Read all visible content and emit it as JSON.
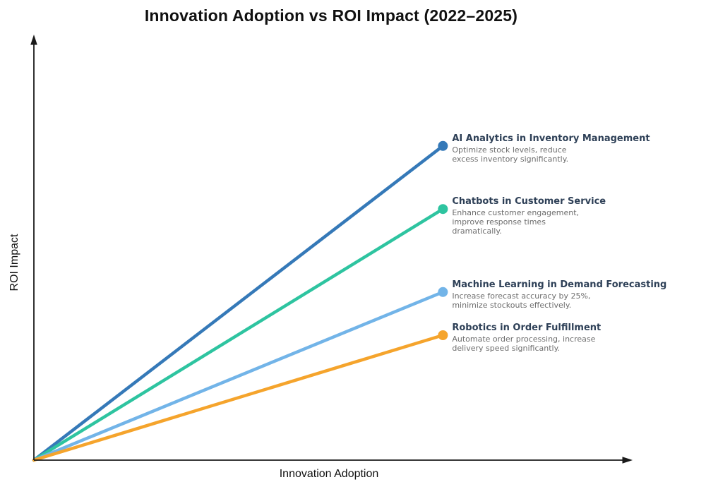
{
  "chart_data": {
    "type": "line",
    "title": "Innovation Adoption vs ROI Impact (2022–2025)",
    "xlabel": "Innovation Adoption",
    "ylabel": "ROI Impact",
    "grid": false,
    "legend_position": "none",
    "axes": {
      "x_range": [
        0,
        1
      ],
      "y_range": [
        0,
        1
      ],
      "ticks": "none",
      "arrowheads": true,
      "axis_color": "#1a1a1a"
    },
    "annotation_colors": {
      "title_color": "#2e4057",
      "description_color": "#6d6d6d"
    },
    "series": [
      {
        "name": "AI Analytics in Inventory Management",
        "description": "Optimize stock levels, reduce\nexcess inventory significantly.",
        "color": "#3579b8",
        "x": [
          0,
          0.684
        ],
        "y": [
          0,
          0.742
        ]
      },
      {
        "name": "Chatbots in Customer Service",
        "description": "Enhance customer engagement,\nimprove response times\ndramatically.",
        "color": "#2ec4a0",
        "x": [
          0,
          0.684
        ],
        "y": [
          0,
          0.593
        ]
      },
      {
        "name": "Machine Learning in Demand Forecasting",
        "description": "Increase forecast accuracy by 25%,\nminimize stockouts effectively.",
        "color": "#72b4e8",
        "x": [
          0,
          0.684
        ],
        "y": [
          0,
          0.397
        ]
      },
      {
        "name": "Robotics in Order Fulfillment",
        "description": "Automate order processing, increase\ndelivery speed significantly.",
        "color": "#f5a42c",
        "x": [
          0,
          0.684
        ],
        "y": [
          0,
          0.295
        ]
      }
    ]
  }
}
